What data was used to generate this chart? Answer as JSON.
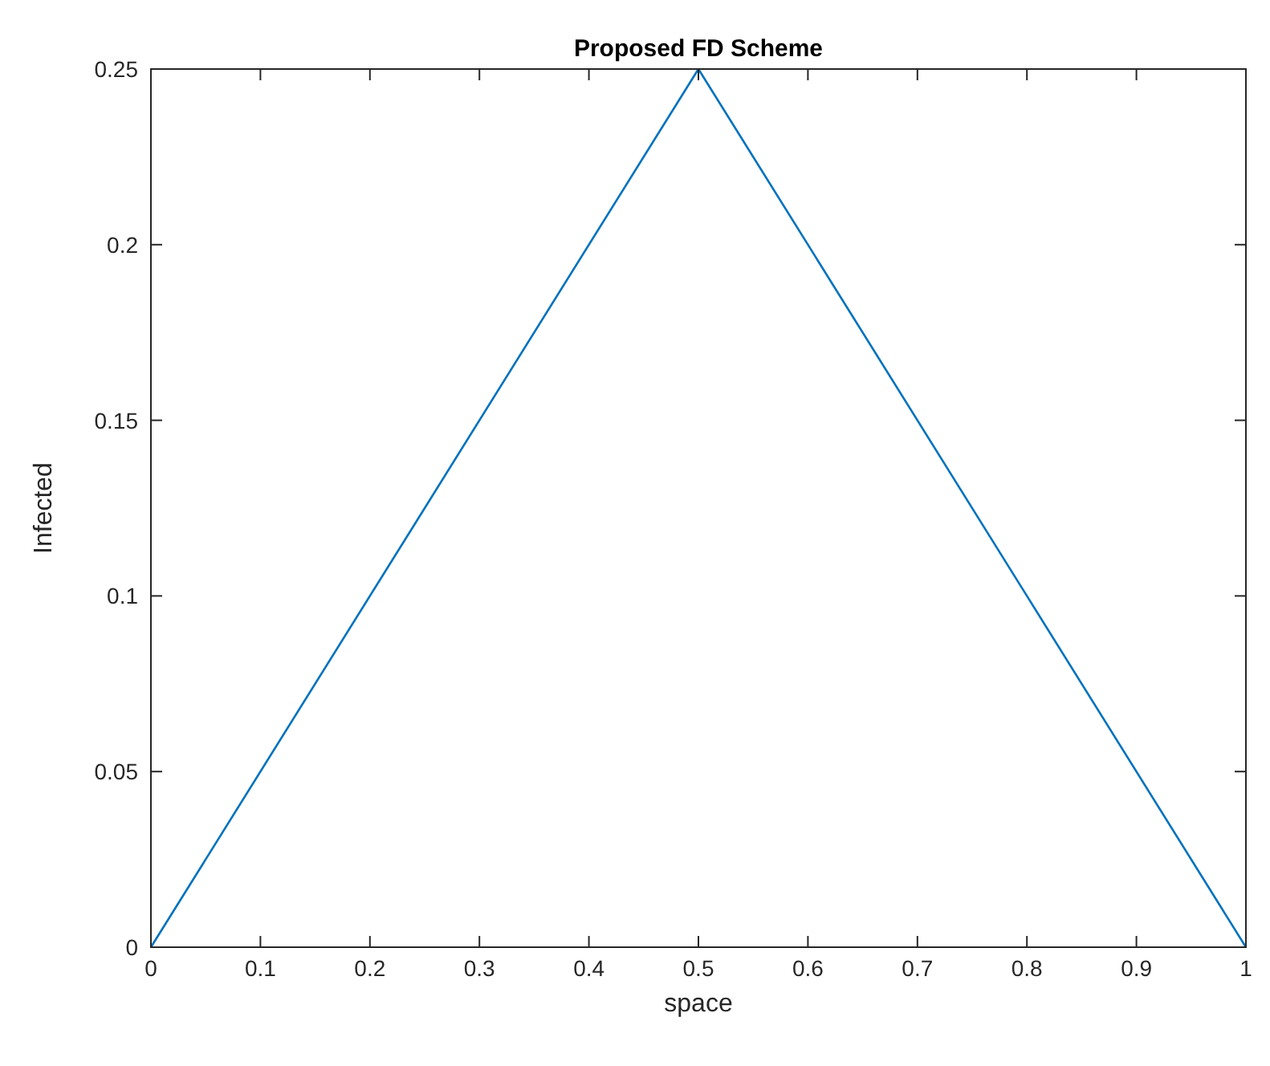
{
  "chart_data": {
    "type": "line",
    "title": "Proposed FD Scheme",
    "xlabel": "space",
    "ylabel": "Infected",
    "x": [
      0,
      0.5,
      1
    ],
    "series": [
      {
        "color": "#0072bd",
        "values": [
          0,
          0.25,
          0
        ]
      }
    ],
    "xlim": [
      0,
      1
    ],
    "xticks": [
      0,
      0.1,
      0.2,
      0.3,
      0.4,
      0.5,
      0.6,
      0.7,
      0.8,
      0.9,
      1
    ],
    "ylim": [
      0,
      0.25
    ],
    "yticks": [
      0,
      0.05,
      0.1,
      0.15,
      0.2,
      0.25
    ],
    "grid": false,
    "marker": "none",
    "line_style": "solid"
  }
}
